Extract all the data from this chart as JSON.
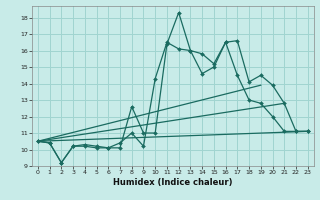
{
  "title": "",
  "xlabel": "Humidex (Indice chaleur)",
  "bg_color": "#c8ebe8",
  "grid_color": "#a0d4d0",
  "line_color": "#1a6b60",
  "xlim": [
    -0.5,
    23.5
  ],
  "ylim": [
    9.0,
    18.7
  ],
  "xticks": [
    0,
    1,
    2,
    3,
    4,
    5,
    6,
    7,
    8,
    9,
    10,
    11,
    12,
    13,
    14,
    15,
    16,
    17,
    18,
    19,
    20,
    21,
    22,
    23
  ],
  "yticks": [
    9,
    10,
    11,
    12,
    13,
    14,
    15,
    16,
    17,
    18
  ],
  "line1_x": [
    0,
    1,
    2,
    3,
    4,
    5,
    6,
    7,
    8,
    9,
    10,
    11,
    12,
    13,
    14,
    15,
    16,
    17,
    18,
    19,
    20,
    21,
    22,
    23
  ],
  "line1_y": [
    10.5,
    10.4,
    9.2,
    10.2,
    10.3,
    10.2,
    10.1,
    10.1,
    12.6,
    11.0,
    11.0,
    16.4,
    18.3,
    16.0,
    15.8,
    15.2,
    16.5,
    16.6,
    14.1,
    14.5,
    13.9,
    12.8,
    11.1,
    11.1
  ],
  "line2_x": [
    0,
    1,
    2,
    3,
    4,
    5,
    6,
    7,
    8,
    9,
    10,
    11,
    12,
    13,
    14,
    15,
    16,
    17,
    18,
    19,
    20,
    21,
    22,
    23
  ],
  "line2_y": [
    10.5,
    10.4,
    9.2,
    10.2,
    10.2,
    10.1,
    10.1,
    10.4,
    11.0,
    10.2,
    14.3,
    16.5,
    16.1,
    16.0,
    14.6,
    15.0,
    16.5,
    14.5,
    13.0,
    12.8,
    12.0,
    11.1,
    11.1,
    11.1
  ],
  "line3_x": [
    0,
    19
  ],
  "line3_y": [
    10.5,
    13.9
  ],
  "line4_x": [
    0,
    23
  ],
  "line4_y": [
    10.5,
    11.1
  ],
  "line5_x": [
    0,
    21
  ],
  "line5_y": [
    10.5,
    12.8
  ]
}
